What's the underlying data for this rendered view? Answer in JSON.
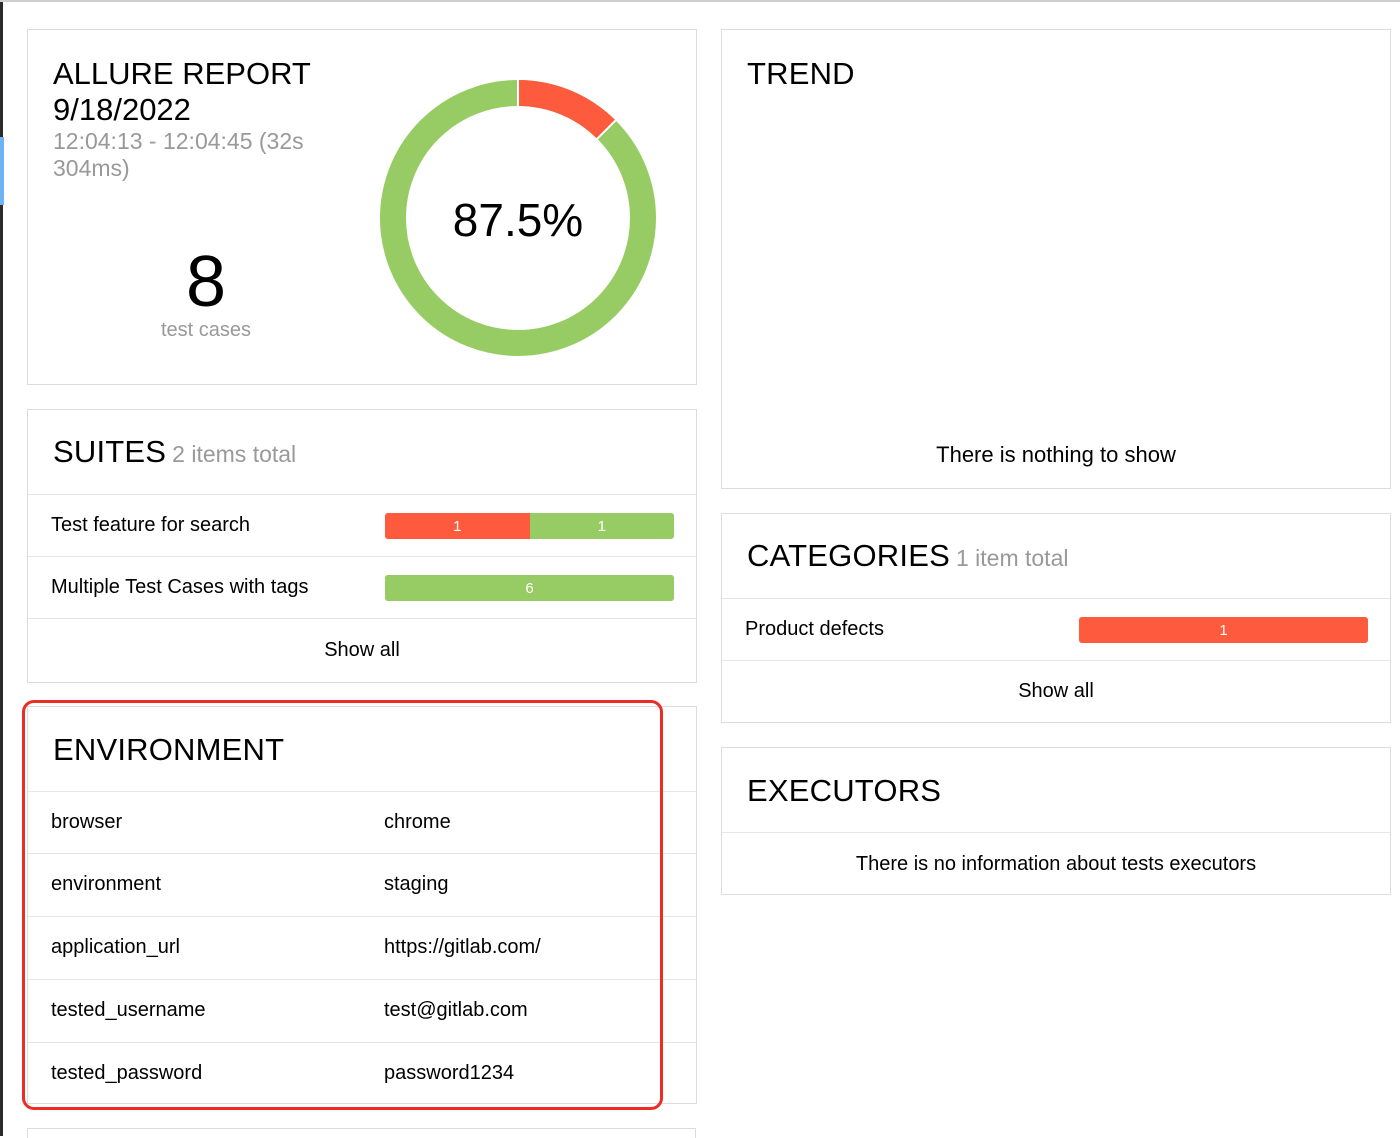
{
  "colors": {
    "failed": "#fd5a3e",
    "passed": "#97cc64",
    "highlight": "#ec2c25"
  },
  "summary": {
    "title": "ALLURE REPORT",
    "date": "9/18/2022",
    "time_range": "12:04:13 - 12:04:45 (32s 304ms)",
    "test_count": "8",
    "test_count_label": "test cases",
    "success_rate": "87.5%",
    "failed_fraction": 0.125,
    "passed_fraction": 0.875
  },
  "suites": {
    "title": "SUITES",
    "subtitle": "2 items total",
    "items": [
      {
        "name": "Test feature for search",
        "failed": 1,
        "passed": 1
      },
      {
        "name": "Multiple Test Cases with tags",
        "failed": 0,
        "passed": 6
      }
    ],
    "show_all": "Show all"
  },
  "environment": {
    "title": "ENVIRONMENT",
    "items": [
      {
        "key": "browser",
        "value": "chrome"
      },
      {
        "key": "environment",
        "value": "staging"
      },
      {
        "key": "application_url",
        "value": "https://gitlab.com/"
      },
      {
        "key": "tested_username",
        "value": "test@gitlab.com"
      },
      {
        "key": "tested_password",
        "value": "password1234"
      }
    ]
  },
  "trend": {
    "title": "TREND",
    "empty_message": "There is nothing to show"
  },
  "categories": {
    "title": "CATEGORIES",
    "subtitle": "1 item total",
    "items": [
      {
        "name": "Product defects",
        "failed": 1,
        "passed": 0
      }
    ],
    "show_all": "Show all"
  },
  "executors": {
    "title": "EXECUTORS",
    "empty_message": "There is no information about tests executors"
  }
}
